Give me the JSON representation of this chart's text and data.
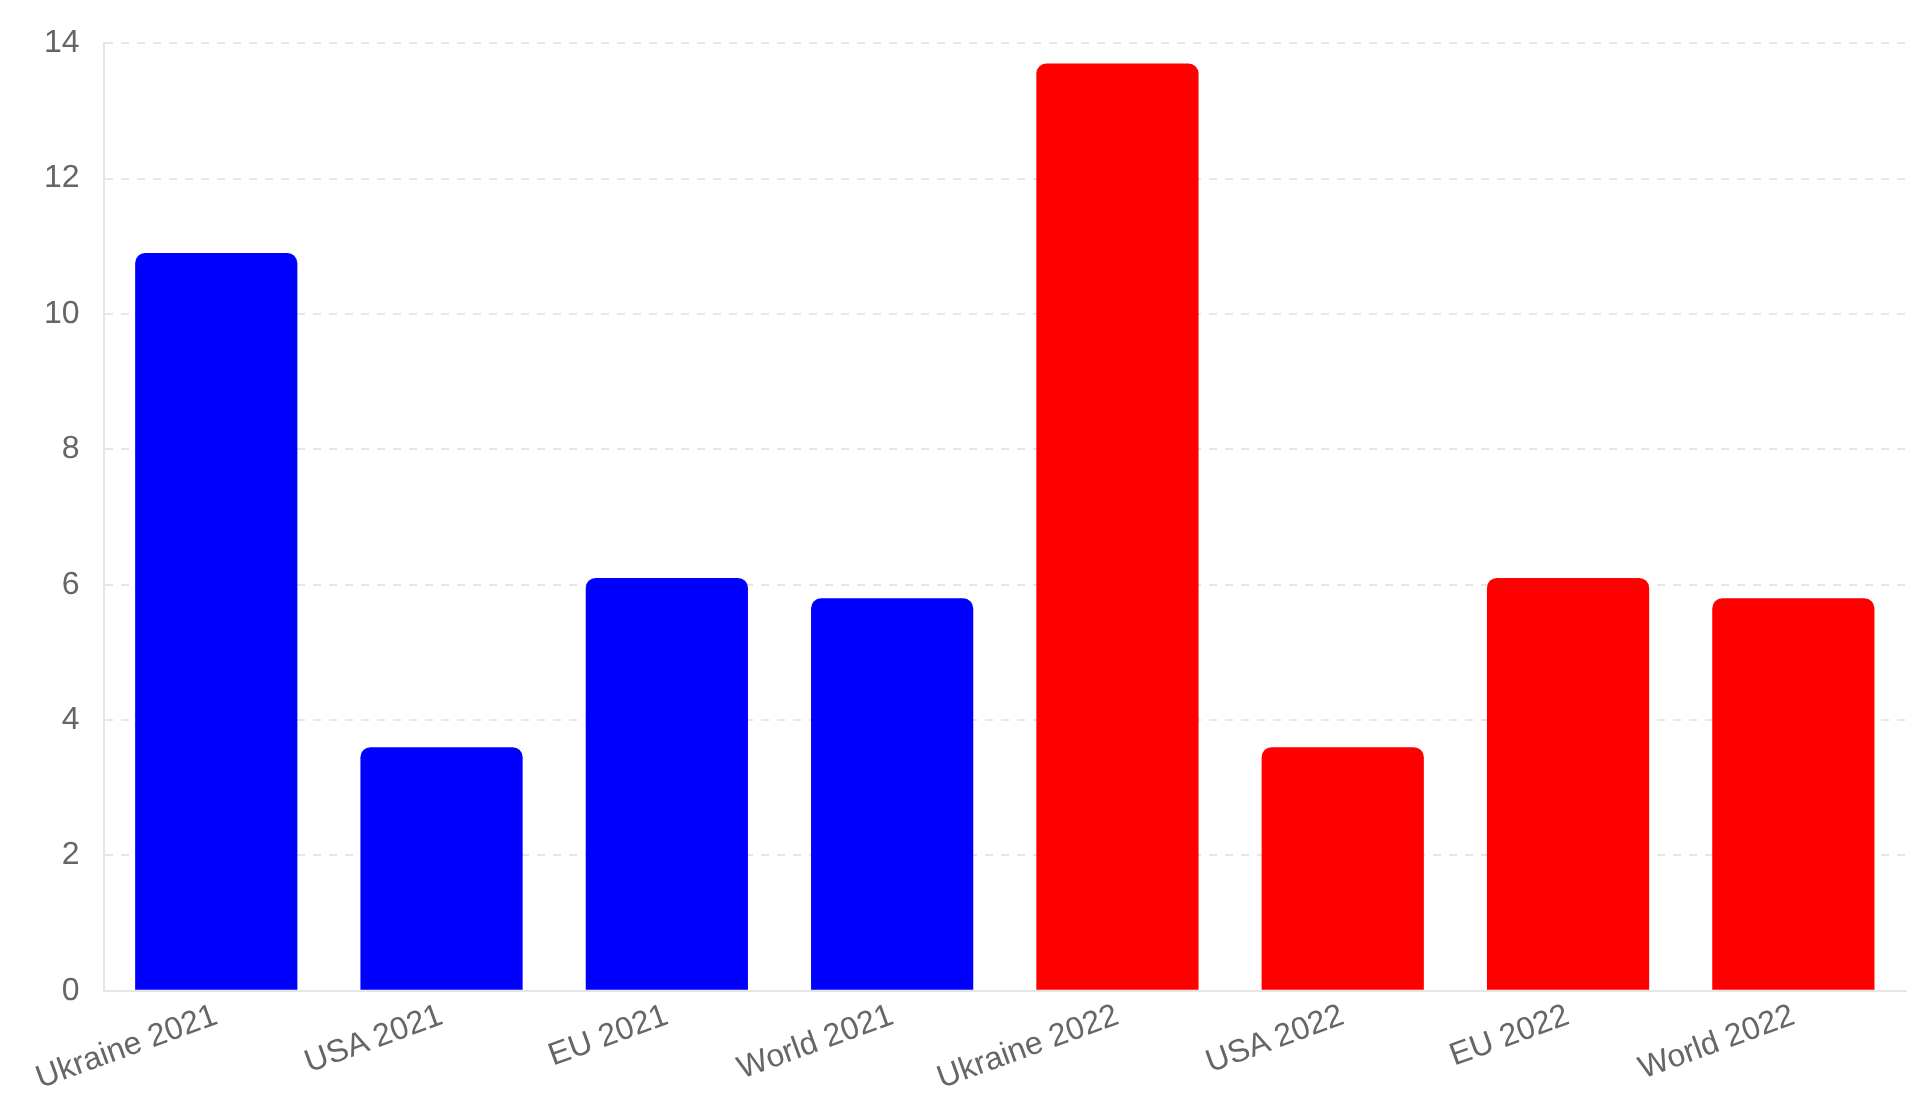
{
  "chart_data": {
    "type": "bar",
    "categories": [
      "Ukraine 2021",
      "USA 2021",
      "EU 2021",
      "World 2021",
      "Ukraine 2022",
      "USA 2022",
      "EU 2022",
      "World 2022"
    ],
    "values": [
      10.9,
      3.6,
      6.1,
      5.8,
      13.7,
      3.6,
      6.1,
      5.8
    ],
    "colors": [
      "#0000ff",
      "#0000ff",
      "#0000ff",
      "#0000ff",
      "#ff0000",
      "#ff0000",
      "#ff0000",
      "#ff0000"
    ],
    "ylim": [
      0,
      14
    ],
    "yticks": [
      0,
      2,
      4,
      6,
      8,
      10,
      12,
      14
    ],
    "grid": "y",
    "legend": false
  }
}
